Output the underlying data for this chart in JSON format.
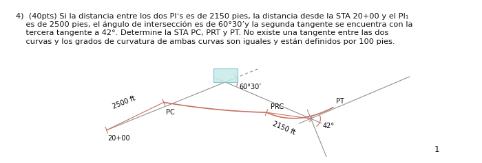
{
  "text_line1": "4)  (40pts) Si la distancia entre los dos PIʼs es de 2150 pies, la distancia desde la STA 20+00 y el PI₁",
  "text_line2": "    es de 2500 pies, el ángulo de intersección es de 60°30’y la segunda tangente se encuentra con la",
  "text_line3": "    tercera tangente a 42°. Determine la STA PC, PRT y PT. No existe una tangente entre las dos",
  "text_line4": "    curvas y los grados de curvatura de ambas curvas son iguales y están definidos por 100 pies.",
  "page_number": "1",
  "bg_color": "#ffffff",
  "line_color": "#c87060",
  "tangent_line_color": "#909090",
  "dashed_line_color": "#909090",
  "box_fill": "#c8eaea",
  "box_edge": "#80c0c0",
  "label_20p00": "20+00",
  "label_2500": "2500 ft",
  "label_PC": "PC",
  "label_2150": "2150 ft",
  "label_PRC": "PRC",
  "label_PT": "PT",
  "label_angle1": "60°30’",
  "label_angle2": "42°",
  "font_size_text": 8.2,
  "font_size_labels": 7.0,
  "font_size_page": 8.5
}
